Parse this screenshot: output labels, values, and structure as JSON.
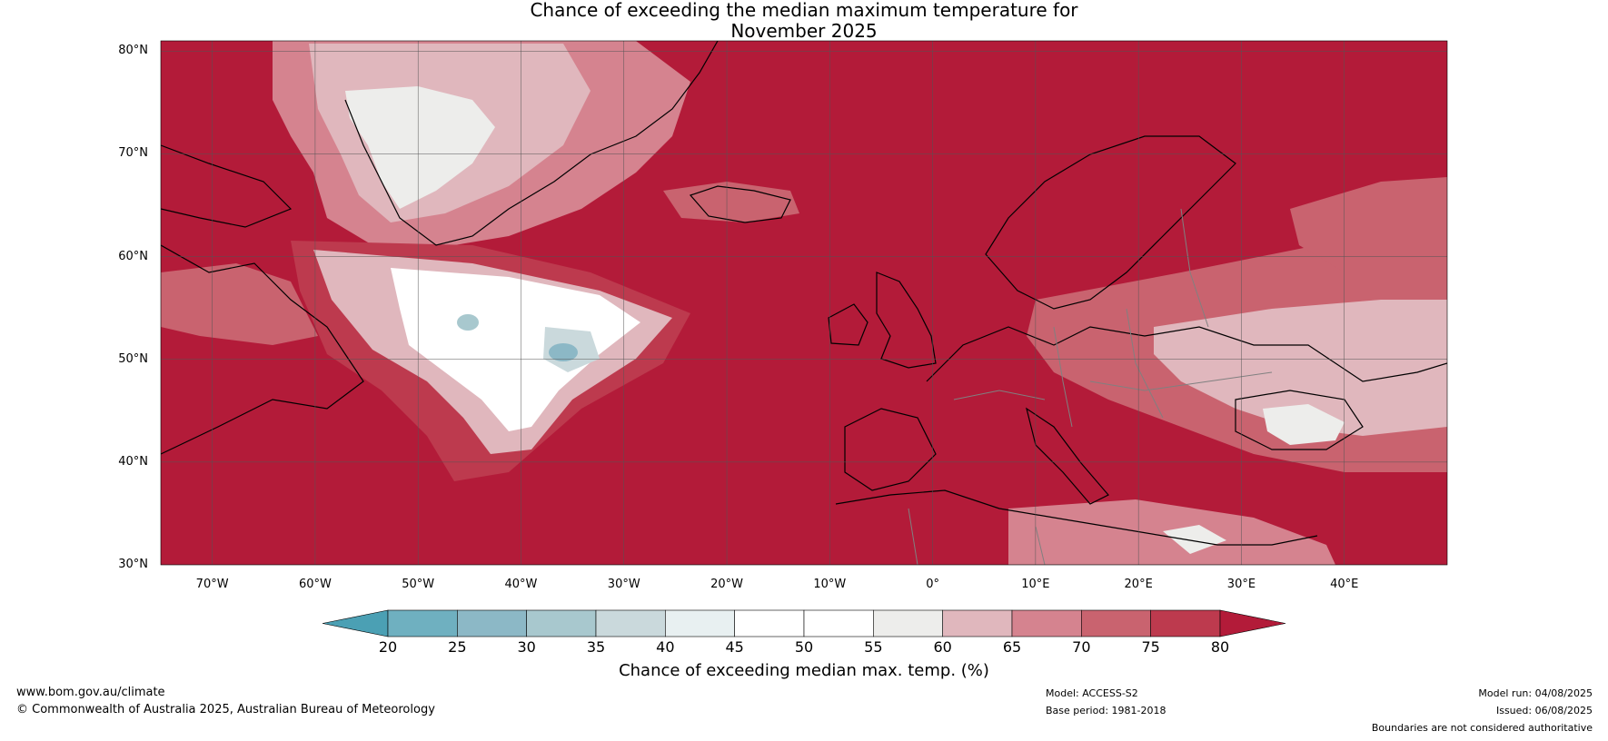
{
  "title": {
    "line1": "Chance of exceeding the median maximum temperature for",
    "line2": "November 2025"
  },
  "map": {
    "lat_labels": [
      "80°N",
      "70°N",
      "60°N",
      "50°N",
      "40°N",
      "30°N"
    ],
    "lon_labels": [
      "70°W",
      "60°W",
      "50°W",
      "40°W",
      "30°W",
      "20°W",
      "10°W",
      "0°",
      "10°E",
      "20°E",
      "30°E",
      "40°E"
    ],
    "ocean_color": "#b31b39",
    "gridline_color": "#555555"
  },
  "colorbar": {
    "ticks": [
      "20",
      "25",
      "30",
      "35",
      "40",
      "45",
      "50",
      "55",
      "60",
      "65",
      "70",
      "75",
      "80"
    ],
    "colors": [
      "#4ba0b4",
      "#6fb0c0",
      "#8cb8c6",
      "#a8c8ce",
      "#cad9dc",
      "#e8f0f1",
      "#ffffff",
      "#ffffff",
      "#ededeb",
      "#e0b7bd",
      "#d5838f",
      "#c9636f",
      "#bd3a4e",
      "#b31b39"
    ],
    "label": "Chance of exceeding median max. temp. (%)"
  },
  "footer": {
    "website": "www.bom.gov.au/climate",
    "copyright": "© Commonwealth of Australia 2025, Australian Bureau of Meteorology",
    "model": "Model: ACCESS-S2",
    "base_period": "Base period: 1981-2018",
    "model_run": "Model run: 04/08/2025",
    "issued": "Issued: 06/08/2025",
    "disclaimer": "Boundaries are not considered authoritative"
  }
}
